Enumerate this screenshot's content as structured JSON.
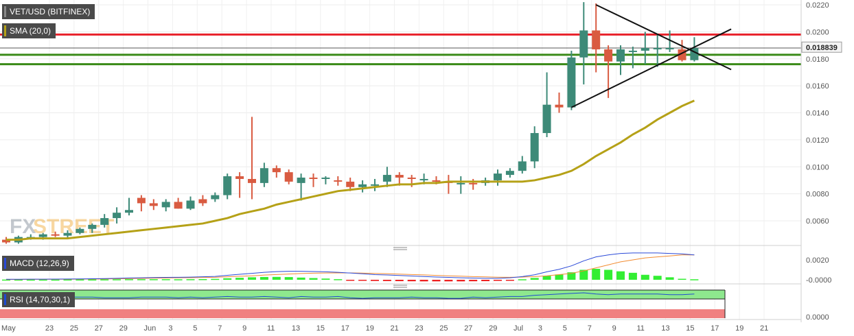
{
  "main_panel": {
    "symbol_label": "VET/USD (BITFINEX)",
    "sma_label": "SMA (20,0)",
    "current_price_tag": "0.018839",
    "watermark_fx": "FX",
    "watermark_street": "STREET",
    "y_tick_labels": [
      "0.0220",
      "0.0200",
      "0.0180",
      "0.0160",
      "0.0140",
      "0.0120",
      "0.0100",
      "0.0080",
      "0.0060"
    ]
  },
  "macd_panel": {
    "label": "MACD (12,26,9)",
    "y_tick_labels": [
      "0.0020",
      "-0.0000"
    ]
  },
  "rsi_panel": {
    "label": "RSI (14,70,30,1)",
    "y_tick_labels": [
      "0.0000"
    ]
  },
  "x_axis": {
    "labels": [
      "May",
      "23",
      "25",
      "27",
      "29",
      "Jun",
      "3",
      "5",
      "7",
      "9",
      "11",
      "13",
      "15",
      "17",
      "19",
      "21",
      "23",
      "25",
      "27",
      "29",
      "Jul",
      "3",
      "5",
      "7",
      "9",
      "11",
      "13",
      "15",
      "17",
      "19",
      "21"
    ]
  },
  "colors": {
    "bull": "#3d8a78",
    "bear": "#d95b41",
    "sma": "#b5a117",
    "resistance": "#e8202a",
    "support": "#3a8a17",
    "macd_line": "#2a49d8",
    "signal_line": "#f28b30",
    "hist_up": "#33ee33",
    "hist_down": "#ee2222",
    "rsi_line": "#1f4bd1",
    "rsi_overbought": "#8ee88e",
    "rsi_oversold": "#f08080",
    "watermark_fx": "#7b8794",
    "watermark_street": "#f0a830"
  },
  "chart_data": {
    "type": "candlestick",
    "pair": "VET/USD",
    "exchange": "BITFINEX",
    "ylim": [
      0.0043,
      0.0222
    ],
    "x": [
      "May 22",
      "May 23",
      "May 24",
      "May 25",
      "May 26",
      "May 27",
      "May 28",
      "May 29",
      "May 30",
      "May 31",
      "Jun 1",
      "Jun 2",
      "Jun 3",
      "Jun 4",
      "Jun 5",
      "Jun 6",
      "Jun 7",
      "Jun 8",
      "Jun 9",
      "Jun 10",
      "Jun 11",
      "Jun 12",
      "Jun 13",
      "Jun 14",
      "Jun 15",
      "Jun 16",
      "Jun 17",
      "Jun 18",
      "Jun 19",
      "Jun 20",
      "Jun 21",
      "Jun 22",
      "Jun 23",
      "Jun 24",
      "Jun 25",
      "Jun 26",
      "Jun 27",
      "Jun 28",
      "Jun 29",
      "Jun 30",
      "Jul 1",
      "Jul 2",
      "Jul 3",
      "Jul 4",
      "Jul 5",
      "Jul 6",
      "Jul 7",
      "Jul 8",
      "Jul 9",
      "Jul 10",
      "Jul 11",
      "Jul 12",
      "Jul 13",
      "Jul 14",
      "Jul 15",
      "Jul 16",
      "Jul 17"
    ],
    "open": [
      0.0046,
      0.0044,
      0.0048,
      0.0048,
      0.005,
      0.0049,
      0.0051,
      0.0054,
      0.0057,
      0.0062,
      0.0066,
      0.0077,
      0.0073,
      0.007,
      0.0074,
      0.0069,
      0.0076,
      0.0076,
      0.0079,
      0.0093,
      0.0091,
      0.0088,
      0.0099,
      0.0096,
      0.0088,
      0.0092,
      0.0091,
      0.009,
      0.0089,
      0.0085,
      0.0087,
      0.0089,
      0.0094,
      0.0092,
      0.009,
      0.009,
      0.0089,
      0.0087,
      0.0088,
      0.0088,
      0.009,
      0.0094,
      0.0097,
      0.0104,
      0.0125,
      0.0146,
      0.0144,
      0.0181,
      0.0201,
      0.0187,
      0.0178,
      0.0185,
      0.0186,
      0.0188,
      0.0188,
      0.0187,
      0.0179
    ],
    "high": [
      0.0048,
      0.0049,
      0.005,
      0.0051,
      0.0052,
      0.0053,
      0.0055,
      0.0058,
      0.0065,
      0.007,
      0.0077,
      0.0079,
      0.0076,
      0.0076,
      0.0077,
      0.0078,
      0.0079,
      0.0081,
      0.0095,
      0.0096,
      0.0137,
      0.0103,
      0.0101,
      0.0098,
      0.0095,
      0.0095,
      0.0093,
      0.0093,
      0.0092,
      0.009,
      0.0091,
      0.01,
      0.0096,
      0.0094,
      0.0095,
      0.0093,
      0.0094,
      0.0093,
      0.0091,
      0.0092,
      0.0098,
      0.0099,
      0.0108,
      0.013,
      0.017,
      0.0155,
      0.0186,
      0.0222,
      0.0221,
      0.019,
      0.019,
      0.0189,
      0.02,
      0.0198,
      0.0201,
      0.0194,
      0.0196
    ],
    "low": [
      0.0043,
      0.0043,
      0.0046,
      0.0046,
      0.0048,
      0.0047,
      0.005,
      0.0051,
      0.0055,
      0.0058,
      0.0064,
      0.0067,
      0.0068,
      0.0067,
      0.0069,
      0.0068,
      0.0071,
      0.0074,
      0.0076,
      0.0077,
      0.0076,
      0.0085,
      0.0092,
      0.0087,
      0.0075,
      0.0085,
      0.0087,
      0.0086,
      0.0082,
      0.0081,
      0.0082,
      0.0085,
      0.0086,
      0.0085,
      0.0087,
      0.0087,
      0.008,
      0.008,
      0.0083,
      0.0086,
      0.0086,
      0.0092,
      0.0095,
      0.0099,
      0.0122,
      0.014,
      0.0142,
      0.0161,
      0.017,
      0.0151,
      0.0168,
      0.0173,
      0.0176,
      0.0174,
      0.0185,
      0.0178,
      0.0178
    ],
    "close": [
      0.0044,
      0.0048,
      0.0048,
      0.005,
      0.0049,
      0.0051,
      0.0054,
      0.0057,
      0.0062,
      0.0066,
      0.0068,
      0.0073,
      0.0071,
      0.0074,
      0.0069,
      0.0075,
      0.0073,
      0.0079,
      0.0093,
      0.0091,
      0.0088,
      0.0099,
      0.0096,
      0.0089,
      0.0092,
      0.0091,
      0.0092,
      0.0089,
      0.0085,
      0.0087,
      0.0087,
      0.0094,
      0.0092,
      0.0091,
      0.0091,
      0.0089,
      0.0088,
      0.0088,
      0.0087,
      0.009,
      0.0095,
      0.0097,
      0.0104,
      0.0125,
      0.0146,
      0.0144,
      0.0181,
      0.0201,
      0.0187,
      0.0178,
      0.0187,
      0.0186,
      0.0188,
      0.0188,
      0.0188,
      0.0179,
      0.0188
    ],
    "series": [
      {
        "name": "SMA (20,0)",
        "type": "line",
        "values": [
          0.0046,
          0.0046,
          0.0047,
          0.0047,
          0.0047,
          0.0047,
          0.0048,
          0.0049,
          0.005,
          0.0051,
          0.0052,
          0.0053,
          0.0054,
          0.0055,
          0.0056,
          0.0057,
          0.0058,
          0.006,
          0.0062,
          0.0065,
          0.0067,
          0.0069,
          0.0072,
          0.0074,
          0.0076,
          0.0078,
          0.008,
          0.0082,
          0.0083,
          0.0084,
          0.0085,
          0.0086,
          0.0087,
          0.0087,
          0.0088,
          0.0088,
          0.0089,
          0.0089,
          0.0089,
          0.0089,
          0.0089,
          0.0089,
          0.0089,
          0.009,
          0.0092,
          0.0094,
          0.0097,
          0.0102,
          0.0108,
          0.0113,
          0.0118,
          0.0124,
          0.0129,
          0.0135,
          0.014,
          0.0145,
          0.0149
        ]
      }
    ],
    "horizontal_lines": [
      {
        "y": 0.0198,
        "color": "red"
      },
      {
        "y": 0.0188,
        "color": "grey"
      },
      {
        "y": 0.0183,
        "color": "green"
      },
      {
        "y": 0.0176,
        "color": "green"
      }
    ],
    "trendlines": [
      {
        "from": [
          "Jul 9",
          0.022
        ],
        "to": [
          "Jul 20",
          0.0172
        ]
      },
      {
        "from": [
          "Jul 7",
          0.0144
        ],
        "to": [
          "Jul 20",
          0.0202
        ]
      }
    ],
    "macd": {
      "macd_line": [
        5e-05,
        5e-05,
        6e-05,
        6e-05,
        7e-05,
        8e-05,
        9e-05,
        0.0001,
        0.00012,
        0.00015,
        0.00018,
        0.0002,
        0.00022,
        0.00024,
        0.00025,
        0.00027,
        0.0003,
        0.00034,
        0.00045,
        0.00055,
        0.00065,
        0.00075,
        0.00082,
        0.00085,
        0.00085,
        0.00083,
        0.0008,
        0.00075,
        0.00068,
        0.0006,
        0.00052,
        0.00048,
        0.00043,
        0.00038,
        0.00033,
        0.00028,
        0.00024,
        0.0002,
        0.00017,
        0.00015,
        0.00015,
        0.0002,
        0.00032,
        0.0005,
        0.0008,
        0.00105,
        0.0014,
        0.0019,
        0.0023,
        0.0025,
        0.00265,
        0.0027,
        0.0027,
        0.0027,
        0.00265,
        0.0026,
        0.0025
      ],
      "signal_line": [
        3e-05,
        3e-05,
        4e-05,
        4e-05,
        5e-05,
        5e-05,
        6e-05,
        7e-05,
        8e-05,
        0.0001,
        0.00012,
        0.00014,
        0.00016,
        0.00018,
        0.0002,
        0.00021,
        0.00023,
        0.00025,
        0.0003,
        0.00035,
        0.0004,
        0.00047,
        0.00053,
        0.00058,
        0.00063,
        0.00066,
        0.00068,
        0.00069,
        0.00069,
        0.00067,
        0.00064,
        0.00061,
        0.00057,
        0.00053,
        0.00049,
        0.00044,
        0.0004,
        0.00036,
        0.00032,
        0.00029,
        0.00026,
        0.00025,
        0.00027,
        0.00032,
        0.0004,
        0.00052,
        0.00065,
        0.0009,
        0.0012,
        0.0015,
        0.0018,
        0.002,
        0.0022,
        0.0023,
        0.0024,
        0.0025,
        0.0025
      ],
      "histogram": [
        2e-05,
        2e-05,
        2e-05,
        2e-05,
        2e-05,
        3e-05,
        3e-05,
        3e-05,
        4e-05,
        5e-05,
        6e-05,
        6e-05,
        6e-05,
        6e-05,
        5e-05,
        6e-05,
        7e-05,
        9e-05,
        0.00015,
        0.0002,
        0.00025,
        0.00028,
        0.00029,
        0.00027,
        0.00022,
        0.00017,
        0.00012,
        6e-05,
        -1e-05,
        -7e-05,
        -0.00012,
        -0.00013,
        -0.00014,
        -0.00015,
        -0.00016,
        -0.00016,
        -0.00016,
        -0.00016,
        -0.00015,
        -0.00014,
        -0.00011,
        -5e-05,
        5e-05,
        0.00018,
        0.0004,
        0.00053,
        0.00075,
        0.001,
        0.0011,
        0.001,
        0.00085,
        0.0007,
        0.0005,
        0.0004,
        0.00025,
        0.0001,
        5e-05
      ]
    },
    "rsi": {
      "values": [
        62,
        63,
        63,
        62,
        62,
        63,
        63,
        63,
        62,
        62,
        62,
        63,
        63,
        63,
        62,
        63,
        62,
        63,
        64,
        63,
        63,
        64,
        63,
        62,
        64,
        63,
        63,
        64,
        62,
        61,
        62,
        62,
        62,
        63,
        62,
        62,
        61,
        61,
        63,
        62,
        63,
        64,
        64,
        66,
        67,
        68,
        69,
        70,
        68,
        67,
        68,
        68,
        68,
        68,
        67,
        67,
        68
      ],
      "ylim": [
        0,
        100
      ]
    }
  }
}
